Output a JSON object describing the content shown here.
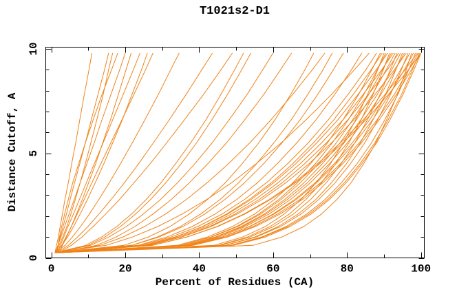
{
  "figure": {
    "background": "#ffffff",
    "text_color": "#000000"
  },
  "chart_data": {
    "type": "line",
    "title": "T1021s2-D1",
    "xlabel": "Percent of Residues (CA)",
    "ylabel": "Distance Cutoff, A",
    "xlim": [
      0,
      100
    ],
    "ylim": [
      0,
      10
    ],
    "axis_box": {
      "x_min": -1.5,
      "x_max": 100.9,
      "y_min": 0,
      "y_max": 10.08
    },
    "x_major_ticks": [
      0,
      20,
      40,
      60,
      80,
      100
    ],
    "x_minor_ticks": [
      10,
      30,
      50,
      70,
      90
    ],
    "y_major_ticks": [
      0,
      5,
      10
    ],
    "y_minor_ticks": [
      1,
      2,
      3,
      4,
      6,
      7,
      8,
      9
    ],
    "grid": false,
    "legend": null,
    "line_color": "#EF8318",
    "cutoffs": [
      0.25,
      0.6,
      1.0,
      1.5,
      2.1,
      2.8,
      3.6,
      4.5,
      5.5,
      6.6,
      7.8,
      9.0,
      9.8
    ],
    "series": [
      {
        "x": [
          1.0,
          1.4,
          1.9,
          2.4,
          3.0,
          3.7,
          4.6,
          5.5,
          6.6,
          7.7,
          8.9,
          10.2,
          11.0
        ]
      },
      {
        "x": [
          1.2,
          1.8,
          2.4,
          3.2,
          4.1,
          5.1,
          6.3,
          7.7,
          9.2,
          10.8,
          12.6,
          14.4,
          15.5
        ]
      },
      {
        "x": [
          1.0,
          2.1,
          3.1,
          4.2,
          5.3,
          6.5,
          7.8,
          9.2,
          10.7,
          12.3,
          14.0,
          15.5,
          16.6
        ]
      },
      {
        "x": [
          1.5,
          1.8,
          2.2,
          2.8,
          3.6,
          4.6,
          5.8,
          7.4,
          9.2,
          11.3,
          13.7,
          16.3,
          18.0
        ]
      },
      {
        "x": [
          1.1,
          1.8,
          2.6,
          3.6,
          4.8,
          6.2,
          7.8,
          9.6,
          11.6,
          13.7,
          16.1,
          18.5,
          20.0
        ]
      },
      {
        "x": [
          1.3,
          2.8,
          4.0,
          5.4,
          6.8,
          8.4,
          10.1,
          12.0,
          13.9,
          16.0,
          18.1,
          20.2,
          21.6
        ]
      },
      {
        "x": [
          1.5,
          2.4,
          3.4,
          4.5,
          6.0,
          7.6,
          9.5,
          11.6,
          14.0,
          16.6,
          19.4,
          22.2,
          24.0
        ]
      },
      {
        "x": [
          1.0,
          2.9,
          4.4,
          6.0,
          7.8,
          9.8,
          11.9,
          14.2,
          16.6,
          19.2,
          21.8,
          24.4,
          26.0
        ]
      },
      {
        "x": [
          2.0,
          3.0,
          4.1,
          5.4,
          7.0,
          8.9,
          11.0,
          13.4,
          16.1,
          19.1,
          22.3,
          25.5,
          27.5
        ]
      },
      {
        "x": [
          1.2,
          3.7,
          5.7,
          7.9,
          10.3,
          12.9,
          15.7,
          18.7,
          21.9,
          25.3,
          28.9,
          32.3,
          34.6
        ]
      },
      {
        "x": [
          1.5,
          4.6,
          7.1,
          9.9,
          12.9,
          16.2,
          19.8,
          23.6,
          27.6,
          31.9,
          36.4,
          40.7,
          43.6
        ]
      },
      {
        "x": [
          2.0,
          5.4,
          8.3,
          11.3,
          14.7,
          18.5,
          22.4,
          26.7,
          31.2,
          36.0,
          41.1,
          45.9,
          49.0
        ]
      },
      {
        "x": [
          1.0,
          9.3,
          13.6,
          17.7,
          21.7,
          25.7,
          29.7,
          33.6,
          37.7,
          41.8,
          45.8,
          49.6,
          52.0
        ]
      },
      {
        "x": [
          1.5,
          10.0,
          14.5,
          18.7,
          22.8,
          26.9,
          31.0,
          35.1,
          39.3,
          43.4,
          47.6,
          51.5,
          54.0
        ]
      },
      {
        "x": [
          1.0,
          10.6,
          15.6,
          20.3,
          24.9,
          29.6,
          34.2,
          38.8,
          43.5,
          48.1,
          52.9,
          57.2,
          60.0
        ]
      },
      {
        "x": [
          2.0,
          12.2,
          17.6,
          22.6,
          27.5,
          32.5,
          37.4,
          42.3,
          47.4,
          52.3,
          57.4,
          62.0,
          65.0
        ]
      },
      {
        "x": [
          1.0,
          19.6,
          26.3,
          32.1,
          37.3,
          42.3,
          47.1,
          51.6,
          56.1,
          60.5,
          64.7,
          68.6,
          71.0
        ]
      },
      {
        "x": [
          1.5,
          13.2,
          19.4,
          25.2,
          30.9,
          36.6,
          42.2,
          47.9,
          53.7,
          59.4,
          65.2,
          70.6,
          74.0
        ]
      },
      {
        "x": [
          2.0,
          21.7,
          28.7,
          34.9,
          40.4,
          45.7,
          50.7,
          55.5,
          60.2,
          64.9,
          69.3,
          73.5,
          76.0
        ]
      },
      {
        "x": [
          1.0,
          21.7,
          29.2,
          35.6,
          41.5,
          47.0,
          52.3,
          57.4,
          62.4,
          67.3,
          72.0,
          76.3,
          79.0
        ]
      },
      {
        "x": [
          1.5,
          23.4,
          31.3,
          38.1,
          44.3,
          50.2,
          55.8,
          61.1,
          66.4,
          71.6,
          76.6,
          81.2,
          84.0
        ]
      },
      {
        "x": [
          1.0,
          14.8,
          22.0,
          28.8,
          35.4,
          42.1,
          48.8,
          55.4,
          62.2,
          68.9,
          75.7,
          82.0,
          86.0
        ]
      },
      {
        "x": [
          1.0,
          24.1,
          32.4,
          39.6,
          46.2,
          52.3,
          58.2,
          63.9,
          69.5,
          74.9,
          80.2,
          85.1,
          88.0
        ]
      },
      {
        "x": [
          1.5,
          34.0,
          42.3,
          49.0,
          55.0,
          60.4,
          65.4,
          70.1,
          74.7,
          78.9,
          83.1,
          86.7,
          89.0
        ]
      },
      {
        "x": [
          2.0,
          25.3,
          33.6,
          40.9,
          47.4,
          53.6,
          59.6,
          65.3,
          70.9,
          76.4,
          81.6,
          86.5,
          89.5
        ]
      },
      {
        "x": [
          1.0,
          44.0,
          51.8,
          57.9,
          63.0,
          67.6,
          71.7,
          75.5,
          79.0,
          82.3,
          85.5,
          88.3,
          90.0
        ]
      },
      {
        "x": [
          2.0,
          34.8,
          43.2,
          50.1,
          56.1,
          61.6,
          66.6,
          71.4,
          76.0,
          80.3,
          84.5,
          88.2,
          90.5
        ]
      },
      {
        "x": [
          1.0,
          24.9,
          33.5,
          41.0,
          47.7,
          54.1,
          60.2,
          66.1,
          71.8,
          77.5,
          82.9,
          87.9,
          91.0
        ]
      },
      {
        "x": [
          2.0,
          45.2,
          53.1,
          59.2,
          64.4,
          68.9,
          73.1,
          76.9,
          80.5,
          83.8,
          87.0,
          89.8,
          91.5
        ]
      },
      {
        "x": [
          1.0,
          34.8,
          43.4,
          50.4,
          56.6,
          62.2,
          67.4,
          72.3,
          77.1,
          81.5,
          85.8,
          89.6,
          92.0
        ]
      },
      {
        "x": [
          1.5,
          25.7,
          34.4,
          41.9,
          48.7,
          55.2,
          61.4,
          67.3,
          73.1,
          78.9,
          84.3,
          89.4,
          92.5
        ]
      },
      {
        "x": [
          2.0,
          35.8,
          44.4,
          51.4,
          57.6,
          63.2,
          68.4,
          73.3,
          78.1,
          82.5,
          86.8,
          90.6,
          93.0
        ]
      },
      {
        "x": [
          1.0,
          45.7,
          53.8,
          60.1,
          65.5,
          70.2,
          74.4,
          78.4,
          82.1,
          85.5,
          88.9,
          91.7,
          93.5
        ]
      },
      {
        "x": [
          2.0,
          26.5,
          35.2,
          42.8,
          49.7,
          56.3,
          62.5,
          68.5,
          74.4,
          80.2,
          85.7,
          90.9,
          94.0
        ]
      },
      {
        "x": [
          1.0,
          35.7,
          44.6,
          51.8,
          58.1,
          63.9,
          69.3,
          74.3,
          79.2,
          83.7,
          88.1,
          92.1,
          94.5
        ]
      },
      {
        "x": [
          2.0,
          46.9,
          55.1,
          61.4,
          66.8,
          71.6,
          75.8,
          79.8,
          83.6,
          87.0,
          90.4,
          93.2,
          95.0
        ]
      },
      {
        "x": [
          1.5,
          36.4,
          45.3,
          52.5,
          58.9,
          64.8,
          70.1,
          75.2,
          80.1,
          84.7,
          89.1,
          93.1,
          95.5
        ]
      },
      {
        "x": [
          1.0,
          26.3,
          35.3,
          43.2,
          50.3,
          57.1,
          63.5,
          69.7,
          75.8,
          81.8,
          87.5,
          92.8,
          96.0
        ]
      },
      {
        "x": [
          1.0,
          47.1,
          55.5,
          62.0,
          67.6,
          72.4,
          76.8,
          80.9,
          84.8,
          88.3,
          91.7,
          94.7,
          96.5
        ]
      },
      {
        "x": [
          2.0,
          37.2,
          46.3,
          53.6,
          60.0,
          65.9,
          71.4,
          76.5,
          81.4,
          86.1,
          90.5,
          94.5,
          97.0
        ]
      },
      {
        "x": [
          2.0,
          54.6,
          62.4,
          68.3,
          73.1,
          77.3,
          81.1,
          84.5,
          87.8,
          90.7,
          93.6,
          96.0,
          97.5
        ]
      },
      {
        "x": [
          1.0,
          37.0,
          46.2,
          53.7,
          60.3,
          66.3,
          71.8,
          77.0,
          82.1,
          86.9,
          91.4,
          95.5,
          98.0
        ]
      },
      {
        "x": [
          1.5,
          48.4,
          56.9,
          63.5,
          69.1,
          74.1,
          78.5,
          82.7,
          86.6,
          90.2,
          93.7,
          96.7,
          98.5
        ]
      },
      {
        "x": [
          1.5,
          27.4,
          36.7,
          44.8,
          52.1,
          59.0,
          65.7,
          72.0,
          78.2,
          84.4,
          90.2,
          95.7,
          99.0
        ]
      },
      {
        "x": [
          1.5,
          37.8,
          47.1,
          54.6,
          61.2,
          67.3,
          72.9,
          78.2,
          83.3,
          88.1,
          92.7,
          96.7,
          99.3
        ]
      },
      {
        "x": [
          1.0,
          48.6,
          57.3,
          64.0,
          69.7,
          74.8,
          79.3,
          83.5,
          87.5,
          91.1,
          94.7,
          97.7,
          99.6
        ]
      },
      {
        "x": [
          2.0,
          38.4,
          47.7,
          55.2,
          61.9,
          68.0,
          73.5,
          78.8,
          83.9,
          88.7,
          93.3,
          97.4,
          100.0
        ]
      },
      {
        "x": [
          2.0,
          49.3,
          58.0,
          64.6,
          70.3,
          75.3,
          79.8,
          84.0,
          88.0,
          91.6,
          95.1,
          98.1,
          100.0
        ]
      },
      {
        "x": [
          1.0,
          27.3,
          36.7,
          45.0,
          52.4,
          59.4,
          66.1,
          72.6,
          78.9,
          85.1,
          91.1,
          96.6,
          100.0
        ]
      }
    ]
  }
}
